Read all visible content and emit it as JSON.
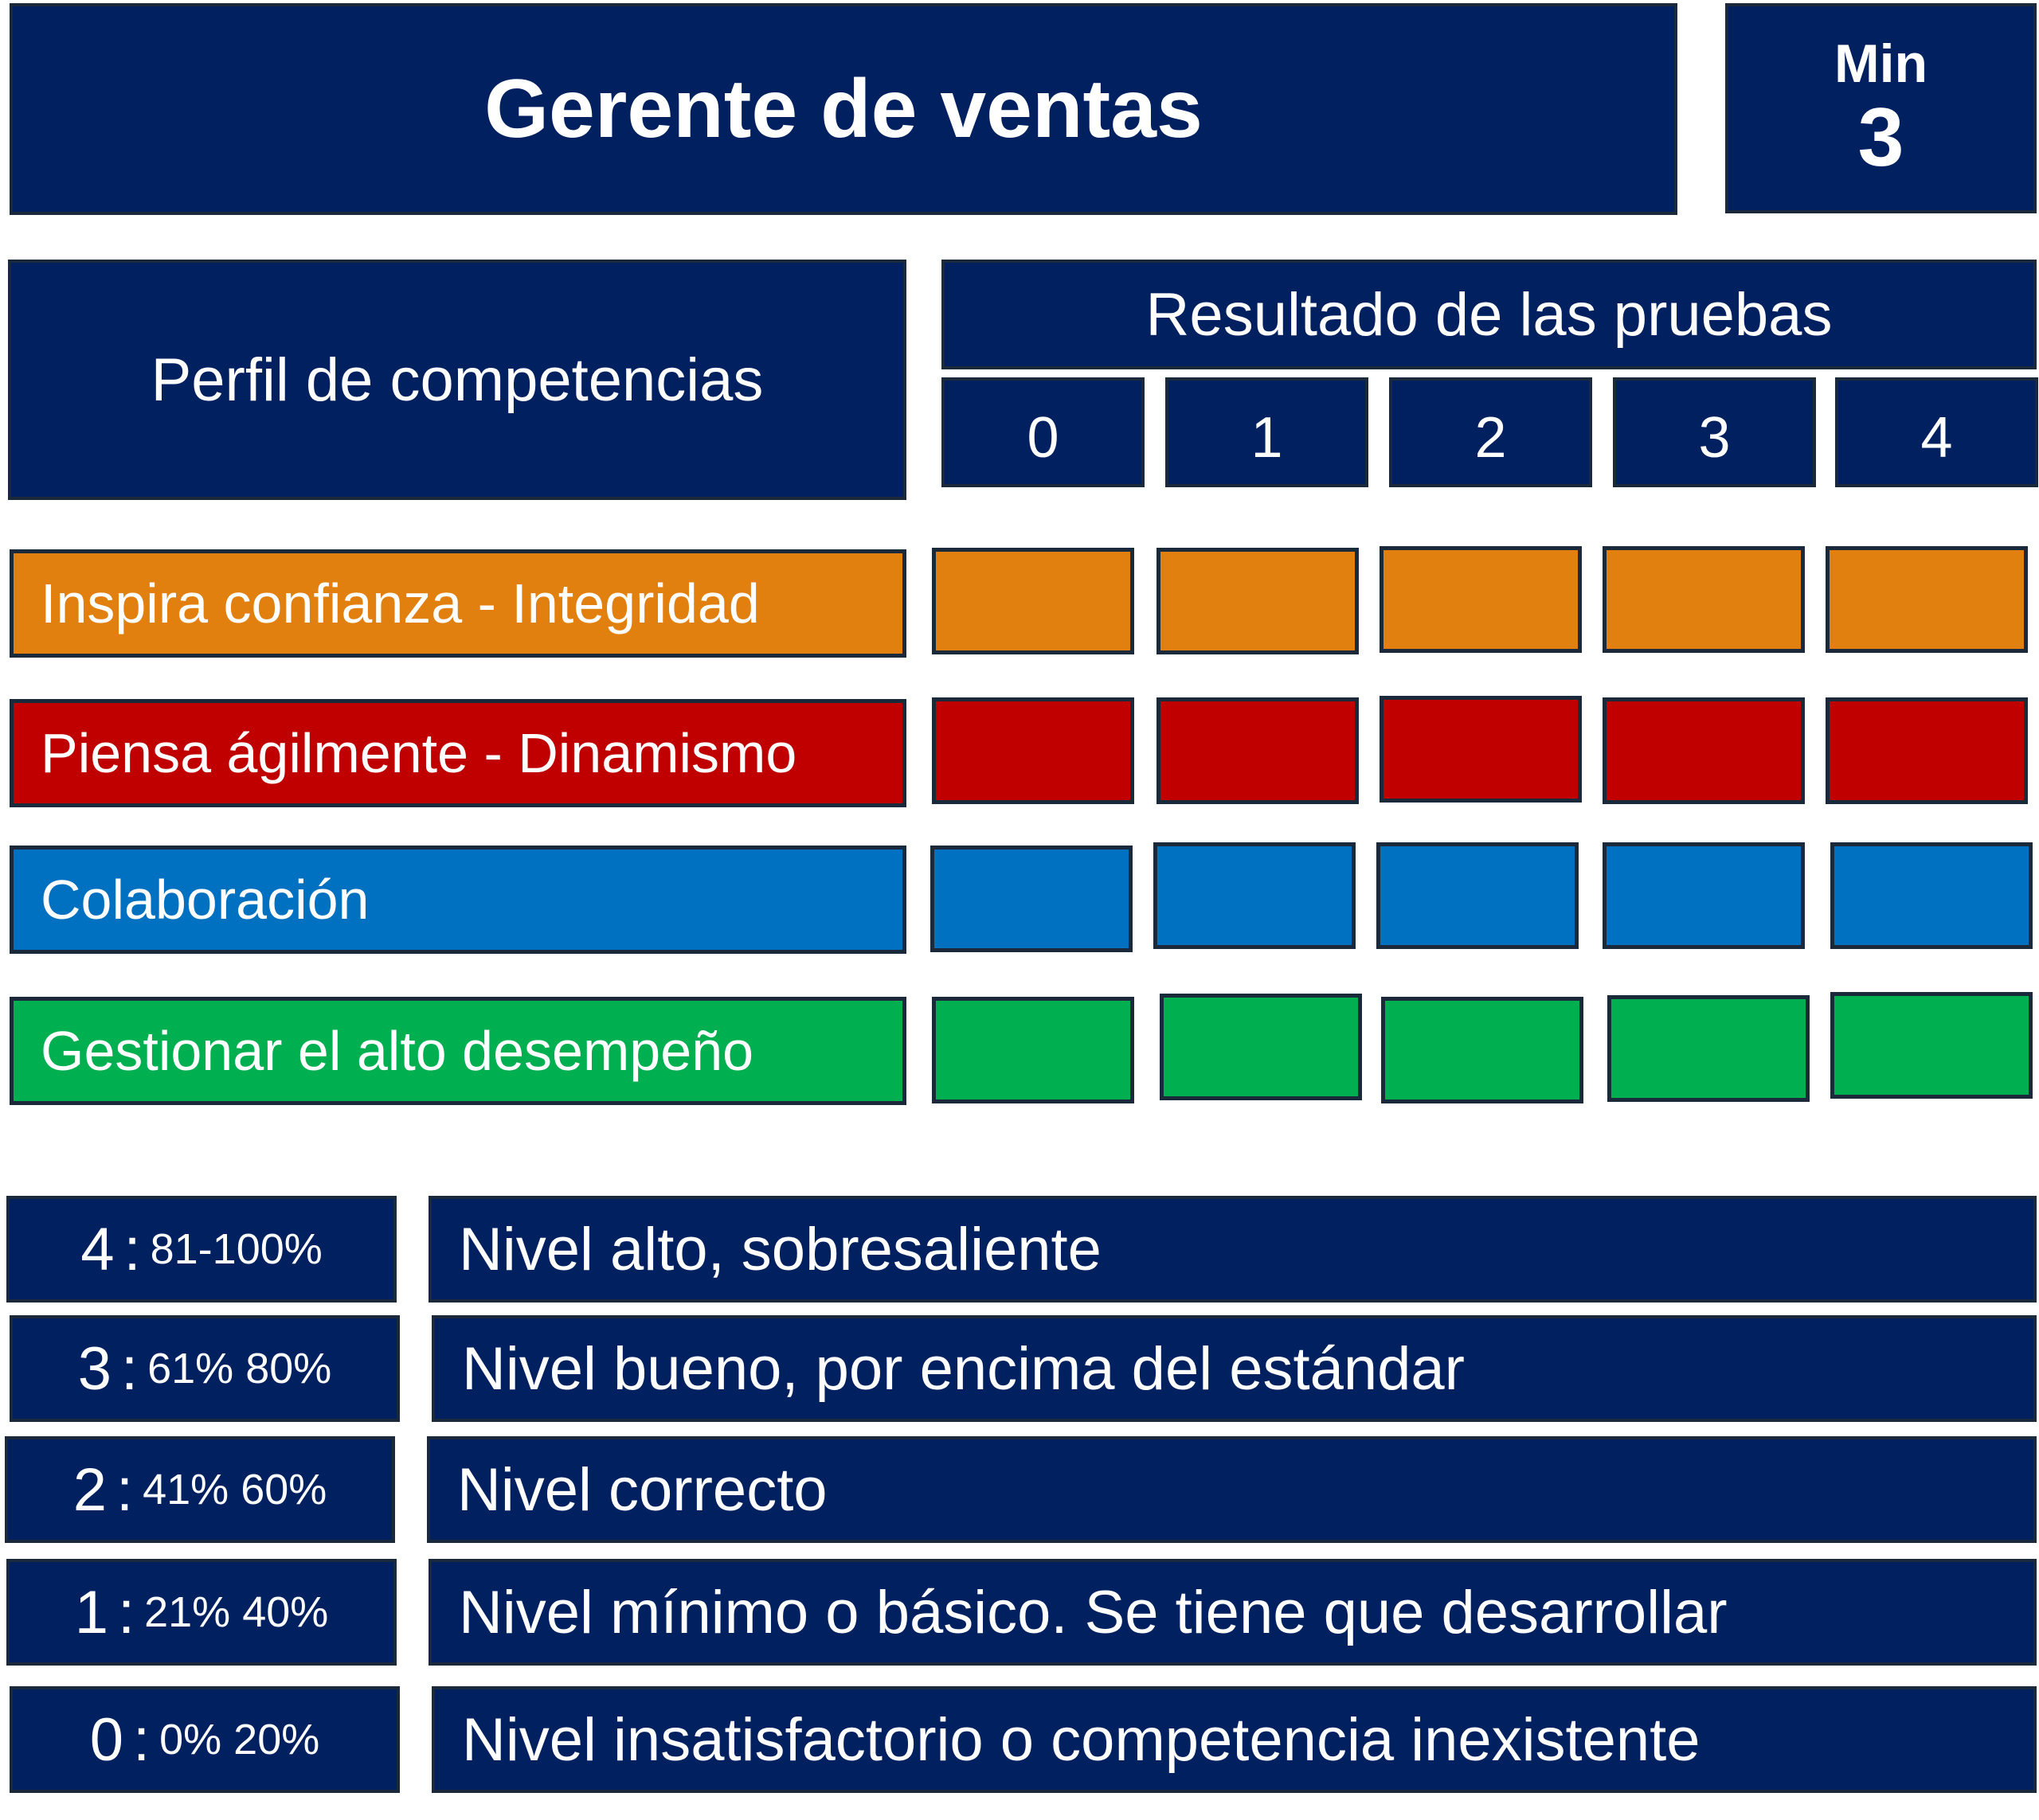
{
  "header": {
    "title": "Gerente de ventas",
    "min_label": "Min",
    "min_value": "3"
  },
  "profile_title": "Perfil de competencias",
  "results_title": "Resultado de las pruebas",
  "scores": [
    "0",
    "1",
    "2",
    "3",
    "4"
  ],
  "competencies": [
    {
      "label": "Inspira confianza - Integridad",
      "color": "#E2800F"
    },
    {
      "label": "Piensa ágilmente - Dinamismo",
      "color": "#C00000"
    },
    {
      "label": "Colaboración",
      "color": "#0070C0"
    },
    {
      "label": "Gestionar el alto desempeño",
      "color": "#00B050"
    }
  ],
  "levels": [
    {
      "level": "4",
      "sep": ":",
      "range": "81-100%",
      "description": "Nivel alto, sobresaliente"
    },
    {
      "level": "3",
      "sep": ":",
      "range": "61% 80%",
      "description": "Nivel bueno, por encima del estándar"
    },
    {
      "level": "2",
      "sep": ":",
      "range": "41% 60%",
      "description": "Nivel correcto"
    },
    {
      "level": "1",
      "sep": ":",
      "range": "21% 40%",
      "description": "Nivel mínimo o básico. Se tiene que desarrollar"
    },
    {
      "level": "0",
      "sep": ":",
      "range": "0% 20%",
      "description": "Nivel insatisfactorio o competencia inexistente"
    }
  ]
}
